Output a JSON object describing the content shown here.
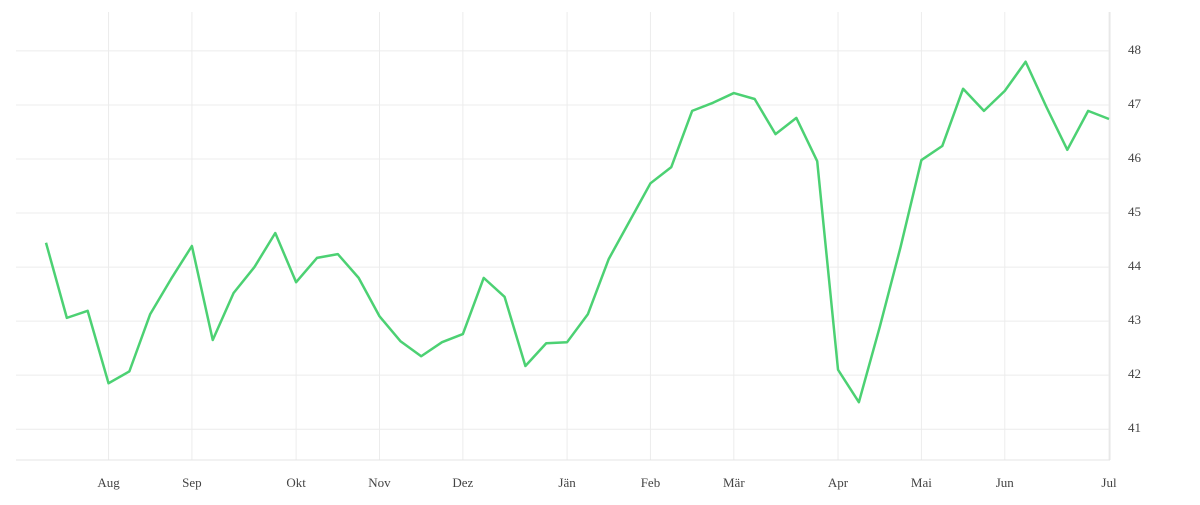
{
  "chart_data": {
    "type": "line",
    "categories": [
      null,
      null,
      null,
      "Aug",
      null,
      null,
      null,
      "Sep",
      null,
      null,
      null,
      null,
      "Okt",
      null,
      null,
      null,
      "Nov",
      null,
      null,
      null,
      "Dez",
      null,
      null,
      null,
      null,
      "Jän",
      null,
      null,
      null,
      "Feb",
      null,
      null,
      null,
      "Mär",
      null,
      null,
      null,
      null,
      "Apr",
      null,
      null,
      null,
      "Mai",
      null,
      null,
      null,
      "Jun",
      null,
      null,
      null,
      null,
      "Jul"
    ],
    "series": [
      {
        "color": "#4cd173",
        "values": [
          44.45,
          43.06,
          43.19,
          41.85,
          42.07,
          43.13,
          43.78,
          44.39,
          42.65,
          43.52,
          44.0,
          44.63,
          43.72,
          44.17,
          44.24,
          43.8,
          43.09,
          42.63,
          42.35,
          42.61,
          42.76,
          43.8,
          43.45,
          42.17,
          42.59,
          42.61,
          43.13,
          44.15,
          44.85,
          45.55,
          45.85,
          46.89,
          47.04,
          47.22,
          47.11,
          46.46,
          46.76,
          45.96,
          42.1,
          41.5,
          42.89,
          44.37,
          45.98,
          46.24,
          47.3,
          46.89,
          47.26,
          47.8,
          46.96,
          46.17,
          46.89,
          46.74
        ]
      }
    ],
    "ylim": [
      40.43,
      48.72
    ],
    "yticks": [
      41,
      42,
      43,
      44,
      45,
      46,
      47,
      48
    ],
    "grid": true
  }
}
